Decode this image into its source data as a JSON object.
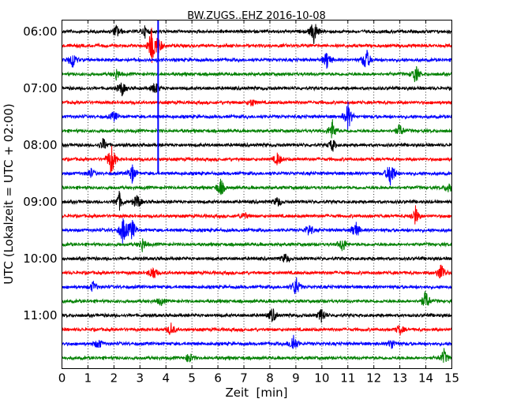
{
  "chart_data": {
    "type": "line",
    "title": "BW.ZUGS..EHZ 2016-10-08",
    "xlabel": "Zeit  [min]",
    "ylabel": "UTC (Lokalzeit = UTC + 02:00)",
    "xlim": [
      0,
      15
    ],
    "x_ticks": [
      "0",
      "1",
      "2",
      "3",
      "4",
      "5",
      "6",
      "7",
      "8",
      "9",
      "10",
      "11",
      "12",
      "13",
      "14",
      "15"
    ],
    "y_tick_labels": [
      "06:00",
      "07:00",
      "08:00",
      "09:00",
      "10:00",
      "11:00"
    ],
    "grid": "vertical dotted lines at each minute",
    "trace_colors": [
      "#000000",
      "#ff0000",
      "#0000ff",
      "#008000"
    ],
    "traces_per_hour": 4,
    "minutes_per_trace": 15,
    "traces": [
      {
        "start": "06:00",
        "events": [
          {
            "t": 2.1,
            "a": 0.5
          },
          {
            "t": 3.2,
            "a": 0.4
          },
          {
            "t": 9.7,
            "a": 1.0
          }
        ]
      },
      {
        "start": "06:15",
        "events": [
          {
            "t": 3.45,
            "a": 1.3
          },
          {
            "t": 3.7,
            "a": 0.8
          }
        ]
      },
      {
        "start": "06:30",
        "events": [
          {
            "t": 0.4,
            "a": 0.7
          },
          {
            "t": 10.2,
            "a": 0.7
          },
          {
            "t": 11.7,
            "a": 1.0
          }
        ]
      },
      {
        "start": "06:45",
        "events": [
          {
            "t": 2.1,
            "a": 0.4
          },
          {
            "t": 13.6,
            "a": 0.7
          }
        ]
      },
      {
        "start": "07:00",
        "events": [
          {
            "t": 2.3,
            "a": 0.6
          },
          {
            "t": 3.6,
            "a": 0.5
          }
        ]
      },
      {
        "start": "07:15",
        "events": [
          {
            "t": 7.3,
            "a": 0.3
          }
        ]
      },
      {
        "start": "07:30",
        "events": [
          {
            "t": 11.0,
            "a": 1.1
          },
          {
            "t": 2.0,
            "a": 0.4
          }
        ]
      },
      {
        "start": "07:45",
        "events": [
          {
            "t": 10.4,
            "a": 0.8
          },
          {
            "t": 13.0,
            "a": 0.5
          }
        ]
      },
      {
        "start": "08:00",
        "events": [
          {
            "t": 1.6,
            "a": 0.5
          },
          {
            "t": 10.4,
            "a": 0.5
          }
        ]
      },
      {
        "start": "08:15",
        "events": [
          {
            "t": 1.9,
            "a": 1.3
          },
          {
            "t": 8.3,
            "a": 0.5
          }
        ]
      },
      {
        "start": "08:30",
        "events": [
          {
            "t": 2.7,
            "a": 0.7
          },
          {
            "t": 12.65,
            "a": 1.2
          },
          {
            "t": 1.1,
            "a": 0.4
          }
        ]
      },
      {
        "start": "08:45",
        "events": [
          {
            "t": 6.1,
            "a": 0.7
          },
          {
            "t": 14.9,
            "a": 0.5
          }
        ]
      },
      {
        "start": "09:00",
        "events": [
          {
            "t": 2.2,
            "a": 0.7
          },
          {
            "t": 2.9,
            "a": 0.6
          },
          {
            "t": 8.3,
            "a": 0.4
          }
        ]
      },
      {
        "start": "09:15",
        "events": [
          {
            "t": 13.6,
            "a": 0.7
          },
          {
            "t": 7.0,
            "a": 0.3
          }
        ]
      },
      {
        "start": "09:30",
        "events": [
          {
            "t": 2.35,
            "a": 1.1
          },
          {
            "t": 2.7,
            "a": 0.9
          },
          {
            "t": 9.5,
            "a": 0.5
          },
          {
            "t": 11.3,
            "a": 0.7
          }
        ]
      },
      {
        "start": "09:45",
        "events": [
          {
            "t": 3.1,
            "a": 0.5
          },
          {
            "t": 10.8,
            "a": 0.6
          }
        ]
      },
      {
        "start": "10:00",
        "events": [
          {
            "t": 8.6,
            "a": 0.4
          }
        ]
      },
      {
        "start": "10:15",
        "events": [
          {
            "t": 3.5,
            "a": 0.6
          },
          {
            "t": 14.6,
            "a": 0.8
          }
        ]
      },
      {
        "start": "10:30",
        "events": [
          {
            "t": 9.0,
            "a": 0.8
          },
          {
            "t": 1.2,
            "a": 0.4
          }
        ]
      },
      {
        "start": "10:45",
        "events": [
          {
            "t": 14.0,
            "a": 0.8
          },
          {
            "t": 3.8,
            "a": 0.3
          }
        ]
      },
      {
        "start": "11:00",
        "events": [
          {
            "t": 8.1,
            "a": 0.6
          },
          {
            "t": 10.0,
            "a": 0.6
          }
        ]
      },
      {
        "start": "11:15",
        "events": [
          {
            "t": 4.2,
            "a": 0.5
          },
          {
            "t": 13.0,
            "a": 0.4
          }
        ]
      },
      {
        "start": "11:30",
        "events": [
          {
            "t": 8.9,
            "a": 0.8
          },
          {
            "t": 1.4,
            "a": 0.4
          },
          {
            "t": 12.7,
            "a": 0.4
          }
        ]
      },
      {
        "start": "11:45",
        "events": [
          {
            "t": 4.9,
            "a": 0.4
          },
          {
            "t": 14.7,
            "a": 0.6
          }
        ]
      }
    ],
    "marker_line": {
      "color": "#0000ff",
      "x": 3.7,
      "from_trace": 0,
      "to_trace": 10
    }
  }
}
